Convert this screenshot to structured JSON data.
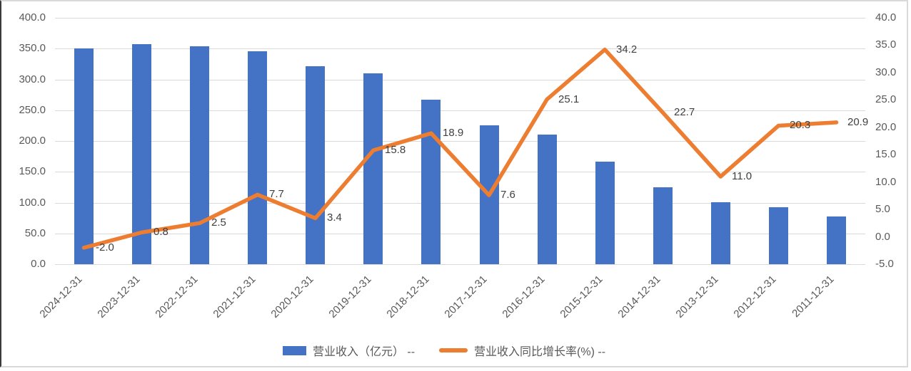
{
  "chart_data": {
    "type": "combo_bar_line",
    "title": "",
    "categories": [
      "2024-12-31",
      "2023-12-31",
      "2022-12-31",
      "2021-12-31",
      "2020-12-31",
      "2019-12-31",
      "2018-12-31",
      "2017-12-31",
      "2016-12-31",
      "2015-12-31",
      "2014-12-31",
      "2013-12-31",
      "2012-12-31",
      "2011-12-31"
    ],
    "series": [
      {
        "name": "营业收入（亿元） --",
        "type": "bar",
        "axis": "left",
        "color": "#4472C4",
        "values": [
          350,
          357,
          354,
          346,
          321,
          310,
          267,
          226,
          210,
          167,
          125,
          101,
          92,
          77
        ]
      },
      {
        "name": "营业收入同比增长率(%) --",
        "type": "line",
        "axis": "right",
        "color": "#ED7D31",
        "values": [
          -2.0,
          0.8,
          2.5,
          7.7,
          3.4,
          15.8,
          18.9,
          7.6,
          25.1,
          34.2,
          22.7,
          11.0,
          20.3,
          20.9
        ],
        "labels": [
          "-2.0",
          "0.8",
          "2.5",
          "7.7",
          "3.4",
          "15.8",
          "18.9",
          "7.6",
          "25.1",
          "34.2",
          "22.7",
          "11.0",
          "20.3",
          "20.9"
        ]
      }
    ],
    "axes": {
      "left": {
        "min": 0,
        "max": 400,
        "ticks": [
          "400.0",
          "350.0",
          "300.0",
          "250.0",
          "200.0",
          "150.0",
          "100.0",
          "50.0",
          "0.0"
        ]
      },
      "right": {
        "min": -5,
        "max": 40,
        "ticks": [
          "40.0",
          "35.0",
          "30.0",
          "25.0",
          "20.0",
          "15.0",
          "10.0",
          "5.0",
          "0.0",
          "-5.0"
        ]
      }
    },
    "grid": "horizontal",
    "legend_position": "bottom",
    "gridline_color": "#d9d9d9",
    "tick_text_color": "#595959",
    "label_text_color": "#404040"
  }
}
